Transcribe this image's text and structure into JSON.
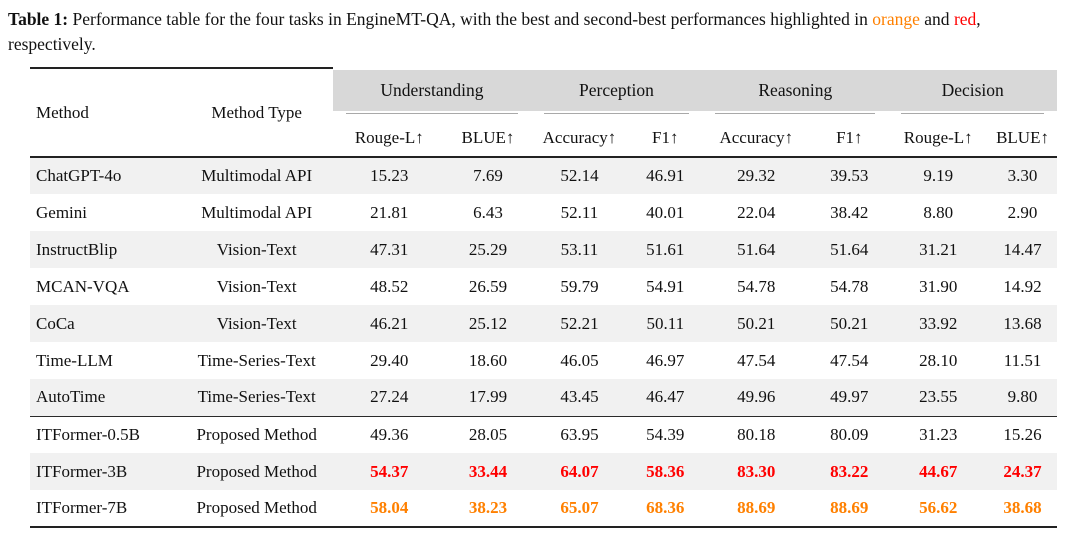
{
  "caption": {
    "label": "Table 1:",
    "before_highlight": " Performance table for the four tasks in EngineMT-QA, with the best and second-best performances highlighted in ",
    "orange_word": "orange",
    "between": " and ",
    "red_word": "red",
    "after": ", respectively."
  },
  "colors": {
    "best": "#FF8000",
    "second_best": "#FF0000",
    "header_band": "#D8D8D8",
    "row_stripe": "#F1F1F1"
  },
  "table": {
    "columns": {
      "method": "Method",
      "method_type": "Method Type",
      "groups": [
        {
          "label": "Understanding",
          "metrics": [
            "Rouge-L↑",
            "BLUE↑"
          ]
        },
        {
          "label": "Perception",
          "metrics": [
            "Accuracy↑",
            "F1↑"
          ]
        },
        {
          "label": "Reasoning",
          "metrics": [
            "Accuracy↑",
            "F1↑"
          ]
        },
        {
          "label": "Decision",
          "metrics": [
            "Rouge-L↑",
            "BLUE↑"
          ]
        }
      ]
    },
    "rows": [
      {
        "method": "ChatGPT-4o",
        "type": "Multimodal API",
        "values": [
          "15.23",
          "7.69",
          "52.14",
          "46.91",
          "29.32",
          "39.53",
          "9.19",
          "3.30"
        ],
        "striped": true,
        "section_start": false,
        "highlight": null
      },
      {
        "method": "Gemini",
        "type": "Multimodal API",
        "values": [
          "21.81",
          "6.43",
          "52.11",
          "40.01",
          "22.04",
          "38.42",
          "8.80",
          "2.90"
        ],
        "striped": false,
        "section_start": false,
        "highlight": null
      },
      {
        "method": "InstructBlip",
        "type": "Vision-Text",
        "values": [
          "47.31",
          "25.29",
          "53.11",
          "51.61",
          "51.64",
          "51.64",
          "31.21",
          "14.47"
        ],
        "striped": true,
        "section_start": false,
        "highlight": null
      },
      {
        "method": "MCAN-VQA",
        "type": "Vision-Text",
        "values": [
          "48.52",
          "26.59",
          "59.79",
          "54.91",
          "54.78",
          "54.78",
          "31.90",
          "14.92"
        ],
        "striped": false,
        "section_start": false,
        "highlight": null
      },
      {
        "method": "CoCa",
        "type": "Vision-Text",
        "values": [
          "46.21",
          "25.12",
          "52.21",
          "50.11",
          "50.21",
          "50.21",
          "33.92",
          "13.68"
        ],
        "striped": true,
        "section_start": false,
        "highlight": null
      },
      {
        "method": "Time-LLM",
        "type": "Time-Series-Text",
        "values": [
          "29.40",
          "18.60",
          "46.05",
          "46.97",
          "47.54",
          "47.54",
          "28.10",
          "11.51"
        ],
        "striped": false,
        "section_start": false,
        "highlight": null
      },
      {
        "method": "AutoTime",
        "type": "Time-Series-Text",
        "values": [
          "27.24",
          "17.99",
          "43.45",
          "46.47",
          "49.96",
          "49.97",
          "23.55",
          "9.80"
        ],
        "striped": true,
        "section_start": false,
        "highlight": null
      },
      {
        "method": "ITFormer-0.5B",
        "type": "Proposed Method",
        "values": [
          "49.36",
          "28.05",
          "63.95",
          "54.39",
          "80.18",
          "80.09",
          "31.23",
          "15.26"
        ],
        "striped": false,
        "section_start": true,
        "highlight": null
      },
      {
        "method": "ITFormer-3B",
        "type": "Proposed Method",
        "values": [
          "54.37",
          "33.44",
          "64.07",
          "58.36",
          "83.30",
          "83.22",
          "44.67",
          "24.37"
        ],
        "striped": true,
        "section_start": false,
        "highlight": "second"
      },
      {
        "method": "ITFormer-7B",
        "type": "Proposed Method",
        "values": [
          "58.04",
          "38.23",
          "65.07",
          "68.36",
          "88.69",
          "88.69",
          "56.62",
          "38.68"
        ],
        "striped": false,
        "section_start": false,
        "highlight": "best"
      }
    ]
  }
}
